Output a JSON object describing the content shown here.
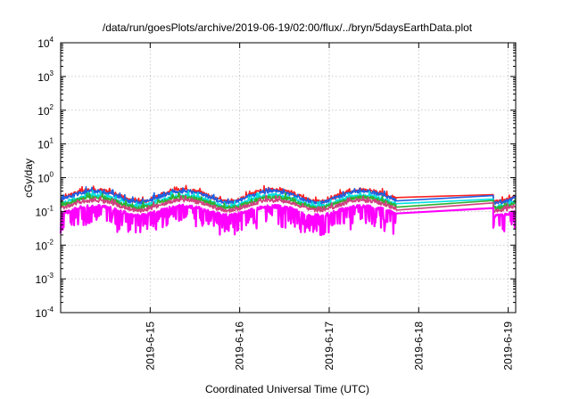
{
  "chart_data": {
    "type": "line",
    "title": "/data/run/goesPlots/archive/2019-06-19/02:00/flux/../bryn/5daysEarthData.plot",
    "xlabel": "Coordinated Universal Time (UTC)",
    "ylabel": "cGy/day",
    "y_scale": "log",
    "ylim": [
      0.0001,
      10000
    ],
    "y_ticks": [
      {
        "base": "10",
        "exp": "-4"
      },
      {
        "base": "10",
        "exp": "-3"
      },
      {
        "base": "10",
        "exp": "-2"
      },
      {
        "base": "10",
        "exp": "-1"
      },
      {
        "base": "10",
        "exp": "0"
      },
      {
        "base": "10",
        "exp": "1"
      },
      {
        "base": "10",
        "exp": "2"
      },
      {
        "base": "10",
        "exp": "3"
      },
      {
        "base": "10",
        "exp": "4"
      }
    ],
    "xlim": [
      "2019-06-14 00:00",
      "2019-06-19 02:00"
    ],
    "x_ticks": [
      "2019-6-15",
      "2019-6-16",
      "2019-6-17",
      "2019-6-18",
      "2019-6-19"
    ],
    "grid": true,
    "data_gap": [
      "2019-06-17 18:00",
      "2019-06-18 20:00"
    ],
    "series": [
      {
        "color": "#ff2020",
        "base": 0.3,
        "amp": 0.55
      },
      {
        "color": "#2060e0",
        "base": 0.28,
        "amp": 0.52
      },
      {
        "color": "#00e0e0",
        "base": 0.22,
        "amp": 0.48
      },
      {
        "color": "#30b030",
        "base": 0.2,
        "amp": 0.45
      },
      {
        "color": "#d04080",
        "base": 0.17,
        "amp": 0.42
      },
      {
        "color": "#ff00ff",
        "base": 0.12,
        "amp": 0.38
      }
    ]
  }
}
